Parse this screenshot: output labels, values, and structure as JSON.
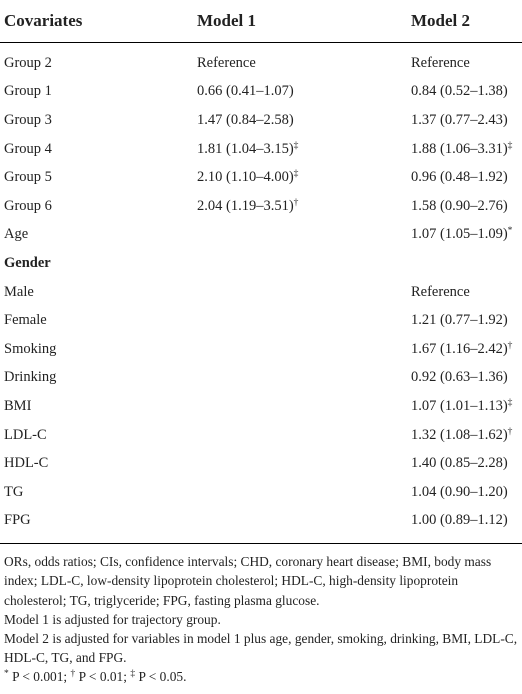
{
  "table": {
    "header": [
      "Covariates",
      "Model 1",
      "Model 2"
    ],
    "rows": [
      [
        "Group 2",
        "Reference",
        "Reference"
      ],
      [
        "Group 1",
        "0.66 (0.41–1.07)",
        "0.84 (0.52–1.38)"
      ],
      [
        "Group 3",
        "1.47 (0.84–2.58)",
        "1.37 (0.77–2.43)"
      ],
      [
        "Group 4",
        {
          "text": "1.81 (1.04–3.15)",
          "sup": "‡"
        },
        {
          "text": "1.88 (1.06–3.31)",
          "sup": "‡"
        }
      ],
      [
        "Group 5",
        {
          "text": "2.10 (1.10–4.00)",
          "sup": "‡"
        },
        "0.96 (0.48–1.92)"
      ],
      [
        "Group 6",
        {
          "text": "2.04 (1.19–3.51)",
          "sup": "†"
        },
        "1.58 (0.90–2.76)"
      ],
      [
        "Age",
        null,
        {
          "text": "1.07 (1.05–1.09)",
          "sup": "*"
        }
      ],
      {
        "heading": "Gender"
      },
      [
        "Male",
        null,
        "Reference"
      ],
      [
        "Female",
        null,
        "1.21 (0.77–1.92)"
      ],
      [
        "Smoking",
        null,
        {
          "text": "1.67 (1.16–2.42)",
          "sup": "†"
        }
      ],
      [
        "Drinking",
        null,
        "0.92 (0.63–1.36)"
      ],
      [
        "BMI",
        null,
        {
          "text": "1.07 (1.01–1.13)",
          "sup": "‡"
        }
      ],
      [
        "LDL-C",
        null,
        {
          "text": "1.32 (1.08–1.62)",
          "sup": "†"
        }
      ],
      [
        "HDL-C",
        null,
        "1.40 (0.85–2.28)"
      ],
      [
        "TG",
        null,
        "1.04 (0.90–1.20)"
      ],
      [
        "FPG",
        null,
        "1.00 (0.89–1.12)"
      ]
    ]
  },
  "notes": [
    "ORs, odds ratios; CIs, confidence intervals; CHD, coronary heart disease; BMI, body mass index; LDL-C, low-density lipoprotein cholesterol; HDL-C, high-density lipoprotein cholesterol; TG, triglyceride; FPG, fasting plasma glucose.",
    "Model 1 is adjusted for trajectory group.",
    "Model 2 is adjusted for variables in model 1 plus age, gender, smoking, drinking, BMI, LDL-C, HDL-C, TG, and FPG.",
    [
      {
        "sup": "*",
        "text": "P < 0.001;"
      },
      {
        "sup": "†",
        "text": "P < 0.01;"
      },
      {
        "sup": "‡",
        "text": "P < 0.05."
      }
    ]
  ]
}
